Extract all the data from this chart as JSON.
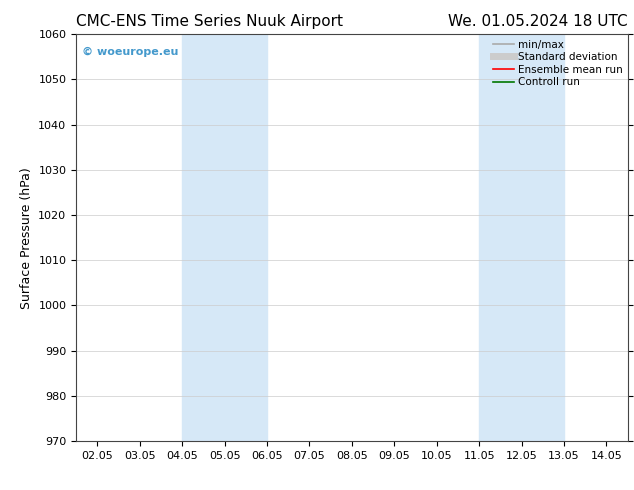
{
  "title_left": "CMC-ENS Time Series Nuuk Airport",
  "title_right": "We. 01.05.2024 18 UTC",
  "ylabel": "Surface Pressure (hPa)",
  "ylim": [
    970,
    1060
  ],
  "yticks": [
    970,
    980,
    990,
    1000,
    1010,
    1020,
    1030,
    1040,
    1050,
    1060
  ],
  "xtick_labels": [
    "02.05",
    "03.05",
    "04.05",
    "05.05",
    "06.05",
    "07.05",
    "08.05",
    "09.05",
    "10.05",
    "11.05",
    "12.05",
    "13.05",
    "14.05"
  ],
  "xtick_positions": [
    0,
    1,
    2,
    3,
    4,
    5,
    6,
    7,
    8,
    9,
    10,
    11,
    12
  ],
  "xlim": [
    -0.5,
    12.5
  ],
  "shaded_bands": [
    {
      "x_start": 2,
      "x_end": 4
    },
    {
      "x_start": 9,
      "x_end": 11
    }
  ],
  "shaded_color": "#d6e8f7",
  "watermark_text": "© woeurope.eu",
  "watermark_color": "#4499cc",
  "legend_entries": [
    {
      "label": "min/max",
      "color": "#aaaaaa",
      "lw": 1.2
    },
    {
      "label": "Standard deviation",
      "color": "#cccccc",
      "lw": 5
    },
    {
      "label": "Ensemble mean run",
      "color": "#ff0000",
      "lw": 1.2
    },
    {
      "label": "Controll run",
      "color": "#007700",
      "lw": 1.2
    }
  ],
  "background_color": "#ffffff",
  "grid_color": "#cccccc",
  "title_fontsize": 11,
  "axis_label_fontsize": 9,
  "tick_fontsize": 8,
  "legend_fontsize": 7.5
}
